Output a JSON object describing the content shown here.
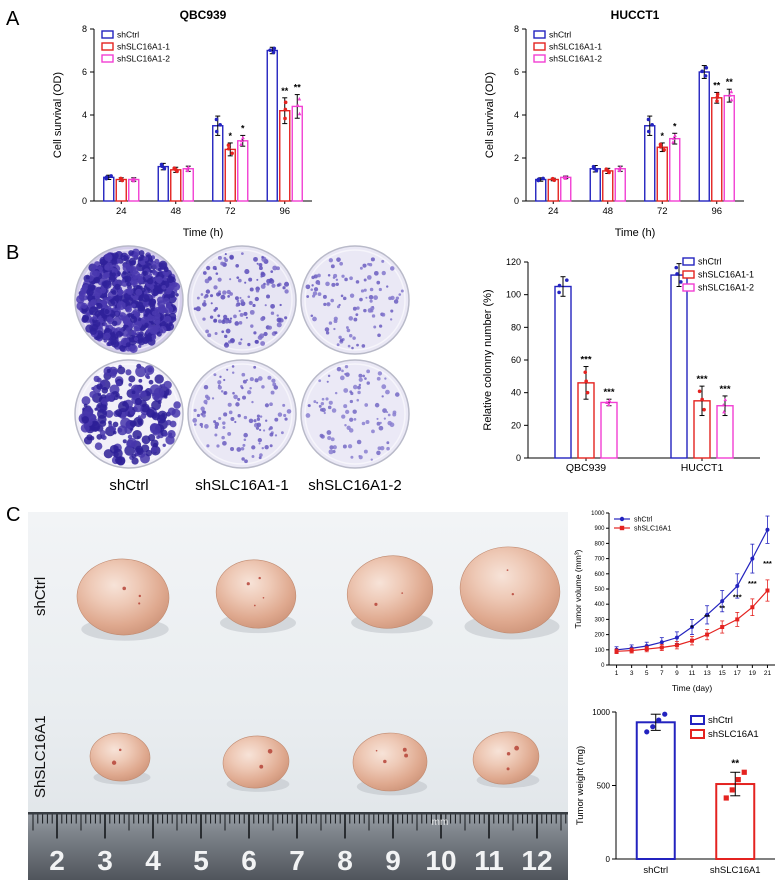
{
  "panels": {
    "a": "A",
    "b": "B",
    "c": "C"
  },
  "colors": {
    "shctrl_blue": "#2323bf",
    "sh1_red": "#e42320",
    "sh2_magenta": "#f23fd3"
  },
  "panel_b": {
    "column_labels": [
      "shCtrl",
      "shSLC16A1-1",
      "shSLC16A1-2"
    ],
    "dishes": [
      {
        "dots": 700,
        "rmin": 1.5,
        "rmax": 4.5,
        "bg": "#d4cdeb",
        "dot": "#4b3ab0",
        "dot2": "#2f219a"
      },
      {
        "dots": 150,
        "rmin": 1.0,
        "rmax": 2.6,
        "bg": "#e7e5f3",
        "dot": "#7b6fc8",
        "dot2": "#5c4eba"
      },
      {
        "dots": 105,
        "rmin": 1.0,
        "rmax": 2.4,
        "bg": "#eae8f5",
        "dot": "#8277cc",
        "dot2": "#6a5cc0"
      },
      {
        "dots": 215,
        "rmin": 1.5,
        "rmax": 5.5,
        "bg": "#f1eff8",
        "dot": "#4636ac",
        "dot2": "#2d1f96"
      },
      {
        "dots": 115,
        "rmin": 1.0,
        "rmax": 2.4,
        "bg": "#eae8f5",
        "dot": "#8277cc",
        "dot2": "#6a5cc0"
      },
      {
        "dots": 95,
        "rmin": 1.0,
        "rmax": 2.4,
        "bg": "#ebe9f6",
        "dot": "#8a7fd0",
        "dot2": "#7468c4"
      }
    ]
  },
  "panel_c": {
    "row_labels": [
      "shCtrl",
      "ShSLC16A1"
    ],
    "ruler": {
      "numbers": [
        "2",
        "3",
        "4",
        "5",
        "6",
        "7",
        "8",
        "9",
        "10",
        "11",
        "12"
      ],
      "unit": "mm"
    },
    "tumors": [
      [
        95,
        85,
        46,
        38
      ],
      [
        228,
        82,
        40,
        34
      ],
      [
        362,
        80,
        43,
        36
      ],
      [
        482,
        78,
        50,
        43
      ],
      [
        92,
        245,
        30,
        24
      ],
      [
        228,
        250,
        33,
        26
      ],
      [
        362,
        250,
        37,
        29
      ],
      [
        478,
        246,
        33,
        26
      ]
    ]
  },
  "chart_data": [
    {
      "type": "bar",
      "title": "QBC939",
      "xlabel": "Time (h)",
      "ylabel": "Cell survival (OD)",
      "ylim": [
        0,
        8
      ],
      "yticks": [
        0,
        2,
        4,
        6,
        8
      ],
      "categories": [
        "24",
        "48",
        "72",
        "96"
      ],
      "legend": "top-left",
      "series": [
        {
          "name": "shCtrl",
          "color": "#2323bf",
          "marker": "circle",
          "values": [
            1.1,
            1.6,
            3.5,
            7.0
          ],
          "errors": [
            0.1,
            0.15,
            0.45,
            0.15
          ]
        },
        {
          "name": "shSLC16A1-1",
          "color": "#e42320",
          "marker": "circle",
          "values": [
            1.0,
            1.45,
            2.4,
            4.2
          ],
          "errors": [
            0.08,
            0.12,
            0.3,
            0.6
          ]
        },
        {
          "name": "shSLC16A1-2",
          "color": "#f23fd3",
          "marker": "triangle",
          "values": [
            1.0,
            1.5,
            2.8,
            4.4
          ],
          "errors": [
            0.08,
            0.12,
            0.25,
            0.55
          ]
        }
      ],
      "annotations": [
        {
          "cat": 2,
          "series": 1,
          "text": "*"
        },
        {
          "cat": 2,
          "series": 2,
          "text": "*"
        },
        {
          "cat": 3,
          "series": 1,
          "text": "**"
        },
        {
          "cat": 3,
          "series": 2,
          "text": "**"
        }
      ]
    },
    {
      "type": "bar",
      "title": "HUCCT1",
      "xlabel": "Time (h)",
      "ylabel": "Cell survival (OD)",
      "ylim": [
        0,
        8
      ],
      "yticks": [
        0,
        2,
        4,
        6,
        8
      ],
      "categories": [
        "24",
        "48",
        "72",
        "96"
      ],
      "legend": "top-left",
      "series": [
        {
          "name": "shCtrl",
          "color": "#2323bf",
          "marker": "circle",
          "values": [
            1.0,
            1.5,
            3.5,
            6.0
          ],
          "errors": [
            0.08,
            0.15,
            0.45,
            0.3
          ]
        },
        {
          "name": "shSLC16A1-1",
          "color": "#e42320",
          "marker": "circle",
          "values": [
            1.0,
            1.4,
            2.5,
            4.8
          ],
          "errors": [
            0.06,
            0.12,
            0.2,
            0.25
          ]
        },
        {
          "name": "shSLC16A1-2",
          "color": "#f23fd3",
          "marker": "triangle",
          "values": [
            1.1,
            1.5,
            2.9,
            4.9
          ],
          "errors": [
            0.06,
            0.12,
            0.25,
            0.3
          ]
        }
      ],
      "annotations": [
        {
          "cat": 2,
          "series": 1,
          "text": "*"
        },
        {
          "cat": 2,
          "series": 2,
          "text": "*"
        },
        {
          "cat": 3,
          "series": 1,
          "text": "**"
        },
        {
          "cat": 3,
          "series": 2,
          "text": "**"
        }
      ]
    },
    {
      "type": "bar",
      "title": "",
      "xlabel": "",
      "ylabel": "Relative colonny number (%)",
      "ylim": [
        0,
        120
      ],
      "yticks": [
        0,
        20,
        40,
        60,
        80,
        100,
        120
      ],
      "categories": [
        "QBC939",
        "HUCCT1"
      ],
      "legend": "top-right",
      "series": [
        {
          "name": "shCtrl",
          "color": "#2323bf",
          "marker": "circle",
          "values": [
            105,
            112
          ],
          "errors": [
            6,
            7
          ]
        },
        {
          "name": "shSLC16A1-1",
          "color": "#e42320",
          "marker": "circle",
          "values": [
            46,
            35
          ],
          "errors": [
            10,
            9
          ]
        },
        {
          "name": "shSLC16A1-2",
          "color": "#f23fd3",
          "marker": "triangle",
          "values": [
            34,
            32
          ],
          "errors": [
            2,
            6
          ]
        }
      ],
      "annotations": [
        {
          "cat": 0,
          "series": 1,
          "text": "***"
        },
        {
          "cat": 0,
          "series": 2,
          "text": "***"
        },
        {
          "cat": 1,
          "series": 1,
          "text": "***"
        },
        {
          "cat": 1,
          "series": 2,
          "text": "***"
        }
      ]
    },
    {
      "type": "line",
      "title": "",
      "xlabel": "Time (day)",
      "ylabel": "Tumor volume (mm³)",
      "x": [
        1,
        3,
        5,
        7,
        9,
        11,
        13,
        15,
        17,
        19,
        21
      ],
      "ylim": [
        0,
        1000
      ],
      "yticks": [
        0,
        100,
        200,
        300,
        400,
        500,
        600,
        700,
        800,
        900,
        1000
      ],
      "legend": "top-left",
      "series": [
        {
          "name": "shCtrl",
          "color": "#2323bf",
          "marker": "circle",
          "values": [
            100,
            110,
            125,
            150,
            180,
            250,
            330,
            420,
            520,
            700,
            890
          ],
          "errors": [
            20,
            22,
            25,
            30,
            38,
            50,
            60,
            70,
            80,
            95,
            90
          ]
        },
        {
          "name": "shSLC16A1",
          "color": "#e42320",
          "marker": "square",
          "values": [
            90,
            95,
            105,
            115,
            130,
            160,
            200,
            250,
            300,
            380,
            490
          ],
          "errors": [
            15,
            16,
            18,
            20,
            24,
            28,
            34,
            40,
            46,
            55,
            70
          ]
        }
      ],
      "annotations": [
        {
          "x": 11,
          "y": 230,
          "text": "*"
        },
        {
          "x": 13,
          "y": 300,
          "text": "**"
        },
        {
          "x": 15,
          "y": 360,
          "text": "**"
        },
        {
          "x": 17,
          "y": 430,
          "text": "***"
        },
        {
          "x": 19,
          "y": 520,
          "text": "***"
        },
        {
          "x": 21,
          "y": 650,
          "text": "***"
        }
      ]
    },
    {
      "type": "category_bar",
      "title": "",
      "xlabel": "",
      "ylabel": "Tumor weight (mg)",
      "ylim": [
        0,
        1000
      ],
      "yticks": [
        0,
        500,
        1000
      ],
      "legend": "top-right",
      "bars": [
        {
          "label": "shCtrl",
          "color": "#2323bf",
          "marker": "circle",
          "value": 930,
          "error": 55,
          "points": [
            865,
            900,
            945,
            985
          ],
          "annotation": ""
        },
        {
          "label": "shSLC16A1",
          "color": "#e42320",
          "marker": "square",
          "value": 510,
          "error": 80,
          "points": [
            415,
            470,
            540,
            590
          ],
          "annotation": "**"
        }
      ]
    }
  ]
}
